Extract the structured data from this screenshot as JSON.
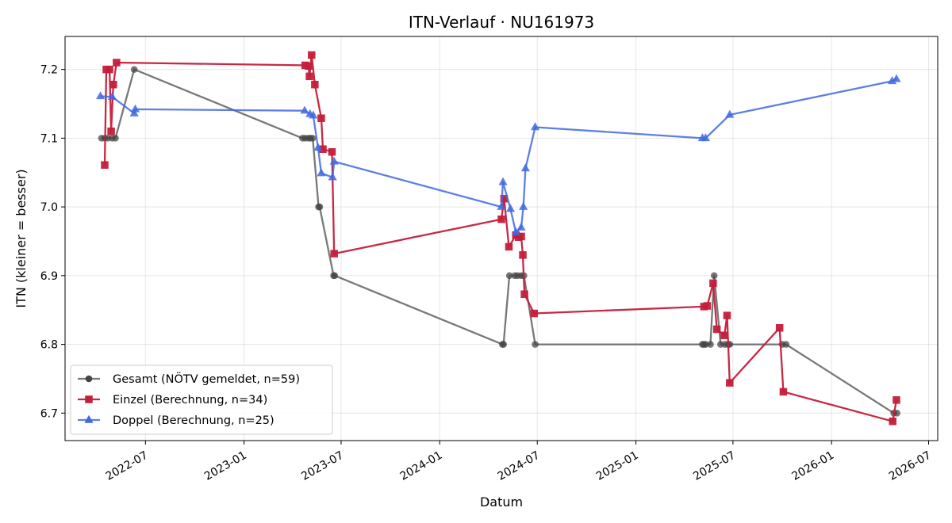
{
  "chart_data": {
    "type": "line",
    "title": "ITN-Verlauf · NU161973",
    "xlabel": "Datum",
    "ylabel": "ITN  (kleiner = besser)",
    "x_axis": "date",
    "xlim": [
      "2022-02-01",
      "2026-07-18"
    ],
    "ylim": [
      6.66,
      7.248
    ],
    "x_ticks": [
      "2022-07-01",
      "2023-01-01",
      "2023-07-01",
      "2024-01-01",
      "2024-07-01",
      "2025-01-01",
      "2025-07-01",
      "2026-01-01",
      "2026-07-01"
    ],
    "x_tick_labels": [
      "2022-07",
      "2023-01",
      "2023-07",
      "2024-01",
      "2024-07",
      "2025-01",
      "2025-07",
      "2026-01",
      "2026-07"
    ],
    "y_ticks": [
      6.7,
      6.8,
      6.9,
      7.0,
      7.1,
      7.2
    ],
    "y_tick_labels": [
      "6.7",
      "6.8",
      "6.9",
      "7.0",
      "7.1",
      "7.2"
    ],
    "grid": true,
    "legend_position": "lower-left",
    "series": [
      {
        "name": "Gesamt (NÖTV gemeldet, n=59)",
        "color": "#444444",
        "line_opacity": 0.72,
        "marker": "circle",
        "points": [
          [
            "2022-04-10",
            7.1
          ],
          [
            "2022-04-16",
            7.1
          ],
          [
            "2022-04-22",
            7.1
          ],
          [
            "2022-04-30",
            7.1
          ],
          [
            "2022-05-06",
            7.1
          ],
          [
            "2022-06-10",
            7.2
          ],
          [
            "2023-04-20",
            7.1
          ],
          [
            "2023-04-25",
            7.1
          ],
          [
            "2023-05-01",
            7.1
          ],
          [
            "2023-05-05",
            7.1
          ],
          [
            "2023-05-09",
            7.1
          ],
          [
            "2023-05-20",
            7.0
          ],
          [
            "2023-05-22",
            7.0
          ],
          [
            "2023-06-17",
            6.9
          ],
          [
            "2023-06-19",
            6.9
          ],
          [
            "2024-04-27",
            6.8
          ],
          [
            "2024-04-29",
            6.8
          ],
          [
            "2024-05-10",
            6.9
          ],
          [
            "2024-05-20",
            6.9
          ],
          [
            "2024-05-25",
            6.9
          ],
          [
            "2024-06-01",
            6.9
          ],
          [
            "2024-06-06",
            6.9
          ],
          [
            "2024-06-27",
            6.8
          ],
          [
            "2025-05-05",
            6.8
          ],
          [
            "2025-05-08",
            6.8
          ],
          [
            "2025-05-11",
            6.8
          ],
          [
            "2025-05-20",
            6.8
          ],
          [
            "2025-05-27",
            6.9
          ],
          [
            "2025-06-08",
            6.8
          ],
          [
            "2025-06-16",
            6.8
          ],
          [
            "2025-06-22",
            6.8
          ],
          [
            "2025-06-25",
            6.8
          ],
          [
            "2025-10-01",
            6.8
          ],
          [
            "2025-10-08",
            6.8
          ],
          [
            "2026-04-27",
            6.7
          ],
          [
            "2026-05-03",
            6.7
          ]
        ]
      },
      {
        "name": "Einzel (Berechnung, n=34)",
        "color": "#c41e3a",
        "line_opacity": 0.95,
        "marker": "square",
        "points": [
          [
            "2022-04-16",
            7.061
          ],
          [
            "2022-04-19",
            7.2
          ],
          [
            "2022-04-25",
            7.2
          ],
          [
            "2022-04-28",
            7.11
          ],
          [
            "2022-05-02",
            7.178
          ],
          [
            "2022-05-08",
            7.21
          ],
          [
            "2023-04-25",
            7.206
          ],
          [
            "2023-05-01",
            7.205
          ],
          [
            "2023-05-03",
            7.19
          ],
          [
            "2023-05-07",
            7.221
          ],
          [
            "2023-05-13",
            7.178
          ],
          [
            "2023-05-25",
            7.129
          ],
          [
            "2023-05-28",
            7.084
          ],
          [
            "2023-06-14",
            7.08
          ],
          [
            "2023-06-18",
            6.932
          ],
          [
            "2024-04-25",
            6.982
          ],
          [
            "2024-04-30",
            7.012
          ],
          [
            "2024-05-09",
            6.942
          ],
          [
            "2024-05-22",
            6.959
          ],
          [
            "2024-05-27",
            6.956
          ],
          [
            "2024-06-01",
            6.957
          ],
          [
            "2024-06-04",
            6.93
          ],
          [
            "2024-06-07",
            6.873
          ],
          [
            "2024-06-25",
            6.845
          ],
          [
            "2025-05-08",
            6.855
          ],
          [
            "2025-05-14",
            6.856
          ],
          [
            "2025-05-25",
            6.889
          ],
          [
            "2025-06-01",
            6.822
          ],
          [
            "2025-06-15",
            6.813
          ],
          [
            "2025-06-20",
            6.842
          ],
          [
            "2025-06-25",
            6.744
          ],
          [
            "2025-09-26",
            6.824
          ],
          [
            "2025-10-03",
            6.731
          ],
          [
            "2026-04-25",
            6.688
          ],
          [
            "2026-05-02",
            6.719
          ]
        ]
      },
      {
        "name": "Doppel (Berechnung, n=25)",
        "color": "#4169e1",
        "line_opacity": 0.85,
        "marker": "triangle",
        "points": [
          [
            "2022-04-08",
            7.161
          ],
          [
            "2022-04-30",
            7.16
          ],
          [
            "2022-06-10",
            7.136
          ],
          [
            "2022-06-12",
            7.142
          ],
          [
            "2023-04-24",
            7.14
          ],
          [
            "2023-05-04",
            7.135
          ],
          [
            "2023-05-10",
            7.133
          ],
          [
            "2023-05-19",
            7.086
          ],
          [
            "2023-05-25",
            7.049
          ],
          [
            "2023-06-15",
            7.043
          ],
          [
            "2023-06-18",
            7.066
          ],
          [
            "2024-04-25",
            7.0
          ],
          [
            "2024-04-28",
            7.036
          ],
          [
            "2024-05-12",
            6.997
          ],
          [
            "2024-05-22",
            6.963
          ],
          [
            "2024-06-01",
            6.97
          ],
          [
            "2024-06-05",
            7.0
          ],
          [
            "2024-06-09",
            7.056
          ],
          [
            "2024-06-27",
            7.116
          ],
          [
            "2025-05-05",
            7.1
          ],
          [
            "2025-05-11",
            7.1
          ],
          [
            "2025-06-25",
            7.134
          ],
          [
            "2026-04-24",
            7.183
          ],
          [
            "2026-05-02",
            7.186
          ]
        ]
      }
    ]
  }
}
